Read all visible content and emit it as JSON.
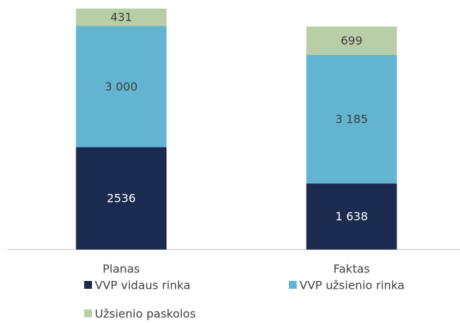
{
  "chart_data": {
    "type": "stacked_bar",
    "categories": [
      "Planas",
      "Faktas"
    ],
    "series": [
      {
        "name": "VVP vidaus rinka",
        "color": "#1b2a4f",
        "values": [
          2536,
          1638
        ],
        "value_labels": [
          "2536",
          "1 638"
        ]
      },
      {
        "name": "VVP užsienio rinka",
        "color": "#62b4d0",
        "values": [
          3000,
          3185
        ],
        "value_labels": [
          "3 000",
          "3 185"
        ]
      },
      {
        "name": "Užsienio paskolos",
        "color": "#b7cea6",
        "values": [
          431,
          699
        ]
      }
    ]
  }
}
